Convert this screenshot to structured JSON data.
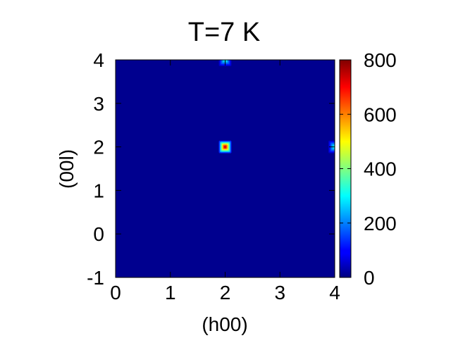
{
  "chart_data": [
    {
      "type": "heatmap",
      "title": "T=7 K",
      "xlabel": "(h00)",
      "ylabel": "(00l)",
      "xlim": [
        0,
        4
      ],
      "ylim": [
        -1,
        4
      ],
      "x_ticks": [
        "0",
        "1",
        "2",
        "3",
        "4"
      ],
      "y_ticks": [
        "-1",
        "0",
        "1",
        "2",
        "3",
        "4"
      ],
      "background_value": 0,
      "peaks": [
        {
          "h": 2,
          "l": 2,
          "value": 720
        },
        {
          "h": 2,
          "l": 4,
          "value": 300
        },
        {
          "h": 4,
          "l": 2,
          "value": 300
        }
      ],
      "colorbar": {
        "min": 0,
        "max": 800,
        "ticks": [
          "0",
          "200",
          "400",
          "600",
          "800"
        ],
        "colormap": "jet"
      }
    }
  ]
}
